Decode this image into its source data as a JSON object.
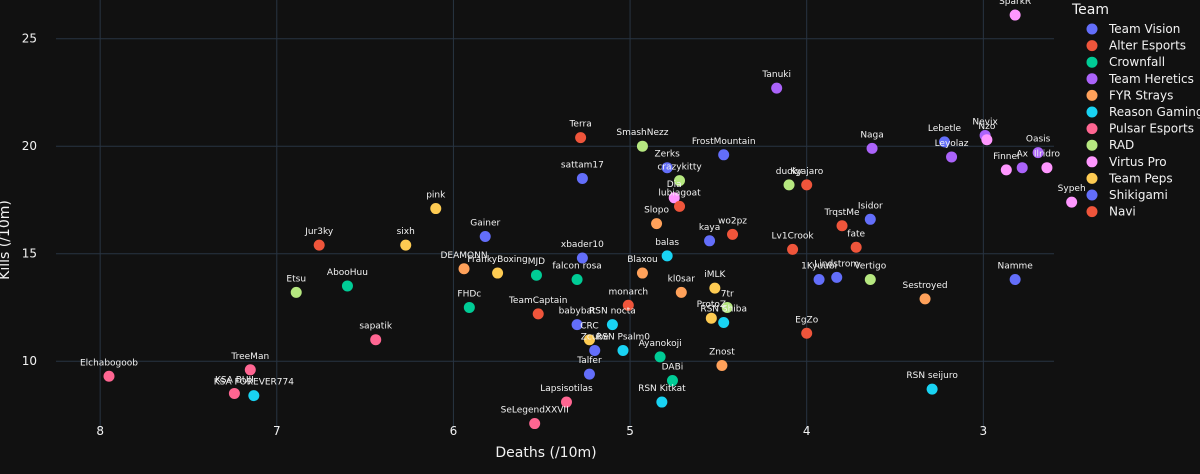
{
  "chart_data": {
    "type": "scatter",
    "title": "",
    "xlabel": "Deaths (/10m)",
    "ylabel": "Kills (/10m)",
    "x_reversed": true,
    "xlim": [
      8.25,
      2.6
    ],
    "ylim": [
      6.8,
      26.8
    ],
    "x_ticks": [
      8,
      7,
      6,
      5,
      4,
      3
    ],
    "y_ticks": [
      10,
      15,
      20,
      25
    ],
    "legend_title": "Team",
    "legend_position": "right",
    "series": [
      {
        "name": "Team Vision",
        "color": "#636efa",
        "points": [
          {
            "label": "sattam17",
            "x": 5.27,
            "y": 18.5
          },
          {
            "label": "xbader10",
            "x": 5.27,
            "y": 14.8
          },
          {
            "label": "kaya",
            "x": 4.55,
            "y": 15.6
          },
          {
            "label": "Gainer",
            "x": 5.82,
            "y": 15.8
          },
          {
            "label": "Talfer",
            "x": 5.23,
            "y": 9.4
          }
        ]
      },
      {
        "name": "Alter Esports",
        "color": "#ef553b",
        "points": [
          {
            "label": "Terra",
            "x": 5.28,
            "y": 20.4
          },
          {
            "label": "TeamCaptain",
            "x": 5.52,
            "y": 12.2
          },
          {
            "label": "monarch",
            "x": 5.01,
            "y": 12.6
          },
          {
            "label": "wo2pz",
            "x": 4.42,
            "y": 15.9
          },
          {
            "label": "Jur3ky",
            "x": 6.76,
            "y": 15.4
          }
        ]
      },
      {
        "name": "Crownfall",
        "color": "#00cc96",
        "points": [
          {
            "label": "AbooHuu",
            "x": 6.6,
            "y": 13.5
          },
          {
            "label": "FHDc",
            "x": 5.91,
            "y": 12.5
          },
          {
            "label": "MJD",
            "x": 5.53,
            "y": 14.0
          },
          {
            "label": "falcon rosa",
            "x": 5.3,
            "y": 13.8
          },
          {
            "label": "Ayanokoji",
            "x": 4.83,
            "y": 10.2
          },
          {
            "label": "DABi",
            "x": 4.76,
            "y": 9.1
          }
        ]
      },
      {
        "name": "Team Heretics",
        "color": "#ab63fa",
        "points": [
          {
            "label": "Tanuki",
            "x": 4.17,
            "y": 22.7
          },
          {
            "label": "Naga",
            "x": 3.63,
            "y": 19.9
          },
          {
            "label": "Leyolaz",
            "x": 3.18,
            "y": 19.5
          },
          {
            "label": "Ax",
            "x": 2.78,
            "y": 19.0
          },
          {
            "label": "Nevix",
            "x": 2.99,
            "y": 20.5
          },
          {
            "label": "Oasis",
            "x": 2.69,
            "y": 19.7
          }
        ]
      },
      {
        "name": "FYR Strays",
        "color": "#ffa15a",
        "points": [
          {
            "label": "Slopo",
            "x": 4.85,
            "y": 16.4
          },
          {
            "label": "Blaxou",
            "x": 4.93,
            "y": 14.1
          },
          {
            "label": "kl0sar",
            "x": 4.71,
            "y": 13.2
          },
          {
            "label": "Znost",
            "x": 4.48,
            "y": 9.8
          },
          {
            "label": "Sestroyed",
            "x": 3.33,
            "y": 12.9
          },
          {
            "label": "DEAMONN",
            "x": 5.94,
            "y": 14.3
          }
        ]
      },
      {
        "name": "Reason Gaming",
        "color": "#19d3f3",
        "points": [
          {
            "label": "balas",
            "x": 4.79,
            "y": 14.9
          },
          {
            "label": "RSN nocta",
            "x": 5.1,
            "y": 11.7
          },
          {
            "label": "RSN Psalm0",
            "x": 5.04,
            "y": 10.5
          },
          {
            "label": "RSN Shiba",
            "x": 4.47,
            "y": 11.8
          },
          {
            "label": "RSN Kitkat",
            "x": 4.82,
            "y": 8.1
          },
          {
            "label": "RSN seijuro",
            "x": 3.29,
            "y": 8.7
          },
          {
            "label": "KSA FOREVER774",
            "x": 7.13,
            "y": 8.4
          }
        ]
      },
      {
        "name": "Pulsar Esports",
        "color": "#ff6692",
        "points": [
          {
            "label": "Elchabogoob",
            "x": 7.95,
            "y": 9.3
          },
          {
            "label": "TreeMan",
            "x": 7.15,
            "y": 9.6
          },
          {
            "label": "KSA BUJI",
            "x": 7.24,
            "y": 8.5
          },
          {
            "label": "sapatik",
            "x": 6.44,
            "y": 11.0
          },
          {
            "label": "Lapsisotilas",
            "x": 5.36,
            "y": 8.1
          },
          {
            "label": "SeLegendXXVII",
            "x": 5.54,
            "y": 7.1
          }
        ]
      },
      {
        "name": "RAD",
        "color": "#b6e880",
        "points": [
          {
            "label": "SmashNezz",
            "x": 4.93,
            "y": 20.0
          },
          {
            "label": "crazykitty",
            "x": 4.72,
            "y": 18.4
          },
          {
            "label": "Etsu",
            "x": 6.89,
            "y": 13.2
          },
          {
            "label": "7tr",
            "x": 4.45,
            "y": 12.5
          },
          {
            "label": "Vertigo",
            "x": 3.64,
            "y": 13.8
          },
          {
            "label": "ducky",
            "x": 4.1,
            "y": 18.2
          }
        ]
      },
      {
        "name": "Virtus Pro",
        "color": "#ff97ff",
        "points": [
          {
            "label": "Nzo",
            "x": 2.98,
            "y": 20.3
          },
          {
            "label": "Finnel",
            "x": 2.87,
            "y": 18.9
          },
          {
            "label": "SparkR",
            "x": 2.82,
            "y": 26.1
          },
          {
            "label": "Ilridro",
            "x": 2.64,
            "y": 19.0
          },
          {
            "label": "Sypeh",
            "x": 2.5,
            "y": 17.4
          },
          {
            "label": "Dia",
            "x": 4.75,
            "y": 17.6
          }
        ]
      },
      {
        "name": "Team Peps",
        "color": "#fecb52",
        "points": [
          {
            "label": "pink",
            "x": 6.1,
            "y": 17.1
          },
          {
            "label": "sixh",
            "x": 6.27,
            "y": 15.4
          },
          {
            "label": "FrankyBoxing",
            "x": 5.75,
            "y": 14.1
          },
          {
            "label": "iMLK",
            "x": 4.52,
            "y": 13.4
          },
          {
            "label": "ProtoZ",
            "x": 4.54,
            "y": 12.0
          },
          {
            "label": "CRC",
            "x": 5.23,
            "y": 11.0
          }
        ]
      },
      {
        "name": "Shikigami",
        "color": "#636efa",
        "points": [
          {
            "label": "Zerks",
            "x": 4.79,
            "y": 19.0
          },
          {
            "label": "FrostMountain",
            "x": 4.47,
            "y": 19.6
          },
          {
            "label": "1Kyuubi",
            "x": 3.93,
            "y": 13.8
          },
          {
            "label": "Lindstrom",
            "x": 3.83,
            "y": 13.9
          },
          {
            "label": "Isidor",
            "x": 3.64,
            "y": 16.6
          },
          {
            "label": "Namme",
            "x": 2.82,
            "y": 13.8
          },
          {
            "label": "Lebetle",
            "x": 3.22,
            "y": 20.2
          },
          {
            "label": "Zcube",
            "x": 5.2,
            "y": 10.5
          },
          {
            "label": "babybat",
            "x": 5.3,
            "y": 11.7
          }
        ]
      },
      {
        "name": "Navi",
        "color": "#ef553b",
        "points": [
          {
            "label": "Kyajaro",
            "x": 4.0,
            "y": 18.2
          },
          {
            "label": "Lv1Crook",
            "x": 4.08,
            "y": 15.2
          },
          {
            "label": "TrqstMe",
            "x": 3.8,
            "y": 16.3
          },
          {
            "label": "fate",
            "x": 3.72,
            "y": 15.3
          },
          {
            "label": "EgZo",
            "x": 4.0,
            "y": 11.3
          },
          {
            "label": "lubiagoat",
            "x": 4.72,
            "y": 17.2
          }
        ]
      }
    ]
  }
}
